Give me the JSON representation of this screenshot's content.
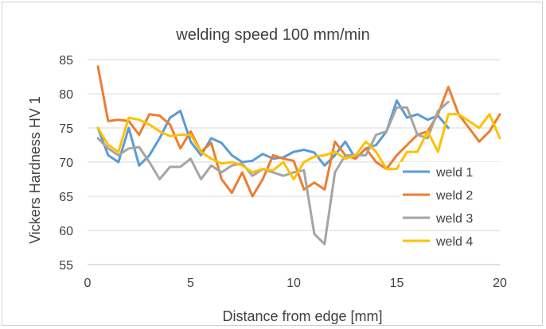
{
  "chart_data": {
    "type": "line",
    "title": "welding speed 100 mm/min",
    "xlabel": "Distance from edge [mm]",
    "ylabel": "Vickers Hardness HV 1",
    "xlim": [
      0,
      20
    ],
    "ylim": [
      55,
      85
    ],
    "xticks": [
      0,
      5,
      10,
      15,
      20
    ],
    "yticks": [
      55,
      60,
      65,
      70,
      75,
      80,
      85
    ],
    "grid": "horizontal",
    "legend_position": "right",
    "series": [
      {
        "name": "weld 1",
        "color": "#5b9bd5",
        "x": [
          0.5,
          1.0,
          1.5,
          2.0,
          2.5,
          3.0,
          3.5,
          4.0,
          4.5,
          5.0,
          5.5,
          6.0,
          6.5,
          7.0,
          7.5,
          8.0,
          8.5,
          9.0,
          9.5,
          10.0,
          10.5,
          11.0,
          11.5,
          12.0,
          12.5,
          13.0,
          13.5,
          14.0,
          14.5,
          15.0,
          15.5,
          16.0,
          16.5,
          17.0,
          17.5
        ],
        "y": [
          75.0,
          71.0,
          70.0,
          75.0,
          69.5,
          71.0,
          73.5,
          76.5,
          77.5,
          73.0,
          71.0,
          73.5,
          72.8,
          71.0,
          70.0,
          70.2,
          71.2,
          70.5,
          70.7,
          71.5,
          71.8,
          71.4,
          69.5,
          71.0,
          73.0,
          70.5,
          72.0,
          72.5,
          74.5,
          79.0,
          76.5,
          77.0,
          76.2,
          76.8,
          75.0
        ]
      },
      {
        "name": "weld 2",
        "color": "#ed7d31",
        "x": [
          0.5,
          1.0,
          1.5,
          2.0,
          2.5,
          3.0,
          3.5,
          4.0,
          4.5,
          5.0,
          5.5,
          6.0,
          6.5,
          7.0,
          7.5,
          8.0,
          8.5,
          9.0,
          9.5,
          10.0,
          10.5,
          11.0,
          11.5,
          12.0,
          12.5,
          13.0,
          13.5,
          14.0,
          14.5,
          15.0,
          15.5,
          16.0,
          16.5,
          17.0,
          17.5,
          18.0,
          18.5,
          19.0,
          19.5,
          20.0
        ],
        "y": [
          84.0,
          76.0,
          76.2,
          76.0,
          74.0,
          77.0,
          76.8,
          75.5,
          72.0,
          74.5,
          71.5,
          72.8,
          67.5,
          65.5,
          68.5,
          65.0,
          67.5,
          71.0,
          70.5,
          70.2,
          66.0,
          67.0,
          66.0,
          73.0,
          71.0,
          70.5,
          72.0,
          70.0,
          69.0,
          71.0,
          72.5,
          74.0,
          74.5,
          77.0,
          81.0,
          77.0,
          75.0,
          73.0,
          74.5,
          77.0
        ]
      },
      {
        "name": "weld 3",
        "color": "#a5a5a5",
        "x": [
          0.5,
          1.0,
          1.5,
          2.0,
          2.5,
          3.0,
          3.5,
          4.0,
          4.5,
          5.0,
          5.5,
          6.0,
          6.5,
          7.0,
          7.5,
          8.0,
          8.5,
          9.0,
          9.5,
          10.0,
          10.5,
          11.0,
          11.5,
          12.0,
          12.5,
          13.0,
          13.5,
          14.0,
          14.5,
          15.0,
          15.5,
          16.0,
          16.5,
          17.0,
          17.5
        ],
        "y": [
          73.5,
          72.0,
          71.0,
          72.0,
          72.2,
          70.0,
          67.5,
          69.3,
          69.3,
          70.5,
          67.5,
          69.5,
          68.5,
          69.5,
          69.8,
          68.0,
          69.0,
          68.5,
          68.0,
          68.5,
          68.8,
          59.5,
          58.0,
          68.5,
          71.0,
          71.0,
          71.0,
          74.0,
          74.5,
          78.0,
          78.0,
          74.0,
          73.5,
          77.5,
          78.8
        ]
      },
      {
        "name": "weld 4",
        "color": "#ffc000",
        "x": [
          0.5,
          1.0,
          1.5,
          2.0,
          2.5,
          3.0,
          3.5,
          4.0,
          4.5,
          5.0,
          5.5,
          6.0,
          6.5,
          7.0,
          7.5,
          8.0,
          8.5,
          9.0,
          9.5,
          10.0,
          10.5,
          11.0,
          11.5,
          12.0,
          12.5,
          13.0,
          13.5,
          14.0,
          14.5,
          15.0,
          15.5,
          16.0,
          16.5,
          17.0,
          17.5,
          18.0,
          18.5,
          19.0,
          19.5,
          20.0
        ],
        "y": [
          75.0,
          72.5,
          71.5,
          76.5,
          76.2,
          75.5,
          74.5,
          73.8,
          74.0,
          74.0,
          71.5,
          70.5,
          69.8,
          70.0,
          69.5,
          68.5,
          69.0,
          68.8,
          70.0,
          67.5,
          70.0,
          70.8,
          71.0,
          71.5,
          70.5,
          71.0,
          73.0,
          71.5,
          69.0,
          69.0,
          71.5,
          71.5,
          74.5,
          71.5,
          77.0,
          77.0,
          76.0,
          75.0,
          77.0,
          73.5
        ]
      }
    ]
  }
}
